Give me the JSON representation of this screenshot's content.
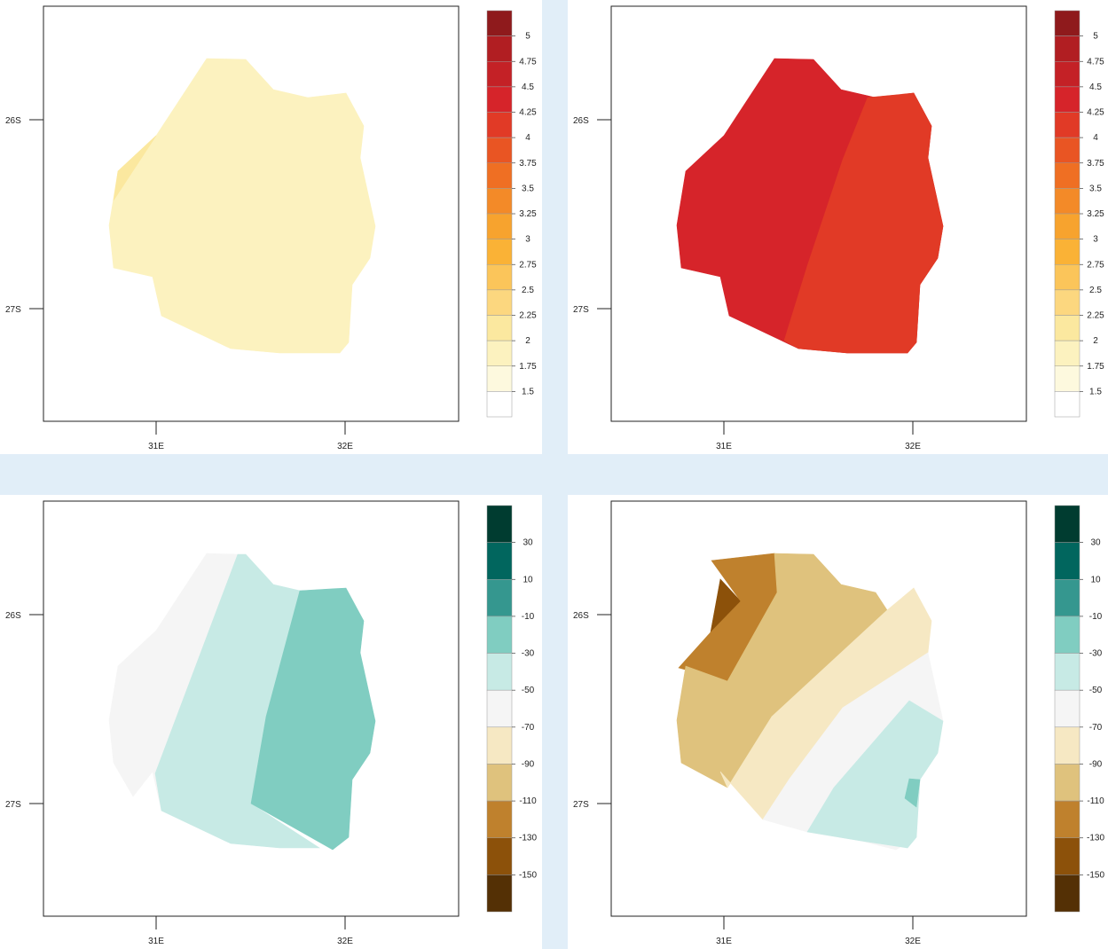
{
  "axes": {
    "lat_ticks": [
      "26S",
      "27S"
    ],
    "lon_ticks": [
      "31E",
      "32E"
    ]
  },
  "colorbars": {
    "temperature": {
      "labels": [
        "5",
        "4.75",
        "4.5",
        "4.25",
        "4",
        "3.75",
        "3.5",
        "3.25",
        "3",
        "2.75",
        "2.5",
        "2.25",
        "2",
        "1.75",
        "1.5"
      ],
      "colors": [
        "#8f1a1c",
        "#b11e22",
        "#c42126",
        "#d6242a",
        "#e13a26",
        "#e95523",
        "#ef6f23",
        "#f38a28",
        "#f7a32e",
        "#fab236",
        "#fbc55a",
        "#fcd77f",
        "#fbe89f",
        "#fcf2bf",
        "#fdf9de",
        "#ffffff"
      ]
    },
    "precipitation": {
      "labels": [
        "30",
        "10",
        "-10",
        "-30",
        "-50",
        "-70",
        "-90",
        "-110",
        "-130",
        "-150"
      ],
      "colors": [
        "#003c30",
        "#01665e",
        "#35978f",
        "#80cdc1",
        "#c7eae5",
        "#f5f5f5",
        "#f6e8c3",
        "#dfc27d",
        "#bf812d",
        "#8c510a",
        "#543005"
      ]
    }
  },
  "chart_data": [
    {
      "type": "heatmap",
      "position": "top-left",
      "colorbar": "temperature",
      "regions": [
        {
          "fill": "#fcf2bf",
          "value_range": [
            1.75,
            2
          ]
        },
        {
          "fill": "#fbe89f",
          "value_range": [
            2,
            2.25
          ]
        }
      ]
    },
    {
      "type": "heatmap",
      "position": "top-right",
      "colorbar": "temperature",
      "regions": [
        {
          "fill": "#d6242a",
          "value_range": [
            4.25,
            4.5
          ],
          "location": "west"
        },
        {
          "fill": "#e13a26",
          "value_range": [
            4,
            4.25
          ],
          "location": "east"
        }
      ]
    },
    {
      "type": "heatmap",
      "position": "bottom-left",
      "colorbar": "precipitation",
      "regions": [
        {
          "fill": "#f5f5f5",
          "value_range": [
            -70,
            -50
          ],
          "location": "west"
        },
        {
          "fill": "#c7eae5",
          "value_range": [
            -50,
            -30
          ],
          "location": "center"
        },
        {
          "fill": "#80cdc1",
          "value_range": [
            -30,
            -10
          ],
          "location": "east"
        }
      ]
    },
    {
      "type": "heatmap",
      "position": "bottom-right",
      "colorbar": "precipitation",
      "regions": [
        {
          "fill": "#8c510a",
          "value_range": [
            -150,
            -130
          ],
          "location": "northwest core"
        },
        {
          "fill": "#bf812d",
          "value_range": [
            -130,
            -110
          ],
          "location": "northwest"
        },
        {
          "fill": "#dfc27d",
          "value_range": [
            -110,
            -90
          ],
          "location": "northwest band"
        },
        {
          "fill": "#f6e8c3",
          "value_range": [
            -90,
            -70
          ],
          "location": "middle band"
        },
        {
          "fill": "#f5f5f5",
          "value_range": [
            -70,
            -50
          ],
          "location": "middle band"
        },
        {
          "fill": "#c7eae5",
          "value_range": [
            -50,
            -30
          ],
          "location": "southeast"
        },
        {
          "fill": "#80cdc1",
          "value_range": [
            -30,
            -10
          ],
          "location": "southeast spot"
        }
      ]
    }
  ]
}
